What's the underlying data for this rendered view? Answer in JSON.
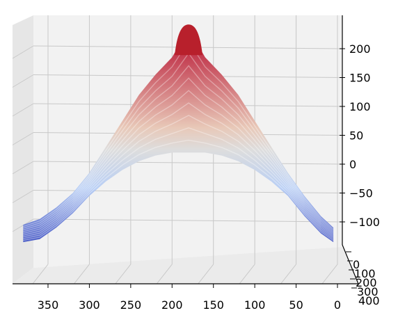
{
  "chart_data": {
    "type": "surface",
    "title": "",
    "colormap": "coolwarm",
    "grid": true,
    "x_axis": {
      "label": "",
      "direction": "decreasing left-to-right",
      "range": [
        0,
        390
      ],
      "ticks": [
        350,
        300,
        250,
        200,
        150,
        100,
        50,
        0
      ],
      "tick_labels": [
        "350",
        "300",
        "250",
        "200",
        "150",
        "100",
        "50",
        "0"
      ]
    },
    "y_axis": {
      "label": "",
      "range": [
        0,
        400
      ],
      "ticks": [
        0,
        100,
        200,
        300,
        400
      ],
      "tick_labels": [
        "0",
        "100",
        "200",
        "300",
        "400"
      ]
    },
    "z_axis": {
      "label": "",
      "range": [
        -150,
        250
      ],
      "ticks": [
        200,
        150,
        100,
        50,
        0,
        -50,
        -100
      ],
      "tick_labels": [
        "200",
        "150",
        "100",
        "50",
        "0",
        "−50",
        "−100"
      ]
    },
    "surface_profile": {
      "description_free": true,
      "x": [
        380,
        360,
        340,
        320,
        300,
        280,
        260,
        240,
        220,
        200,
        190,
        180,
        170,
        160,
        140,
        120,
        100,
        80,
        60,
        40,
        20,
        5
      ],
      "z_max": [
        -105,
        -95,
        -75,
        -50,
        -15,
        30,
        75,
        120,
        155,
        185,
        210,
        235,
        210,
        185,
        155,
        120,
        75,
        30,
        -15,
        -55,
        -90,
        -110
      ],
      "z_min": [
        -135,
        -130,
        -110,
        -85,
        -55,
        -30,
        -10,
        5,
        15,
        20,
        20,
        20,
        20,
        20,
        15,
        5,
        -10,
        -30,
        -55,
        -90,
        -120,
        -135
      ]
    },
    "color_scale": {
      "low": "#3b4cc0",
      "mid": "#dddddd",
      "high": "#b40426"
    }
  }
}
